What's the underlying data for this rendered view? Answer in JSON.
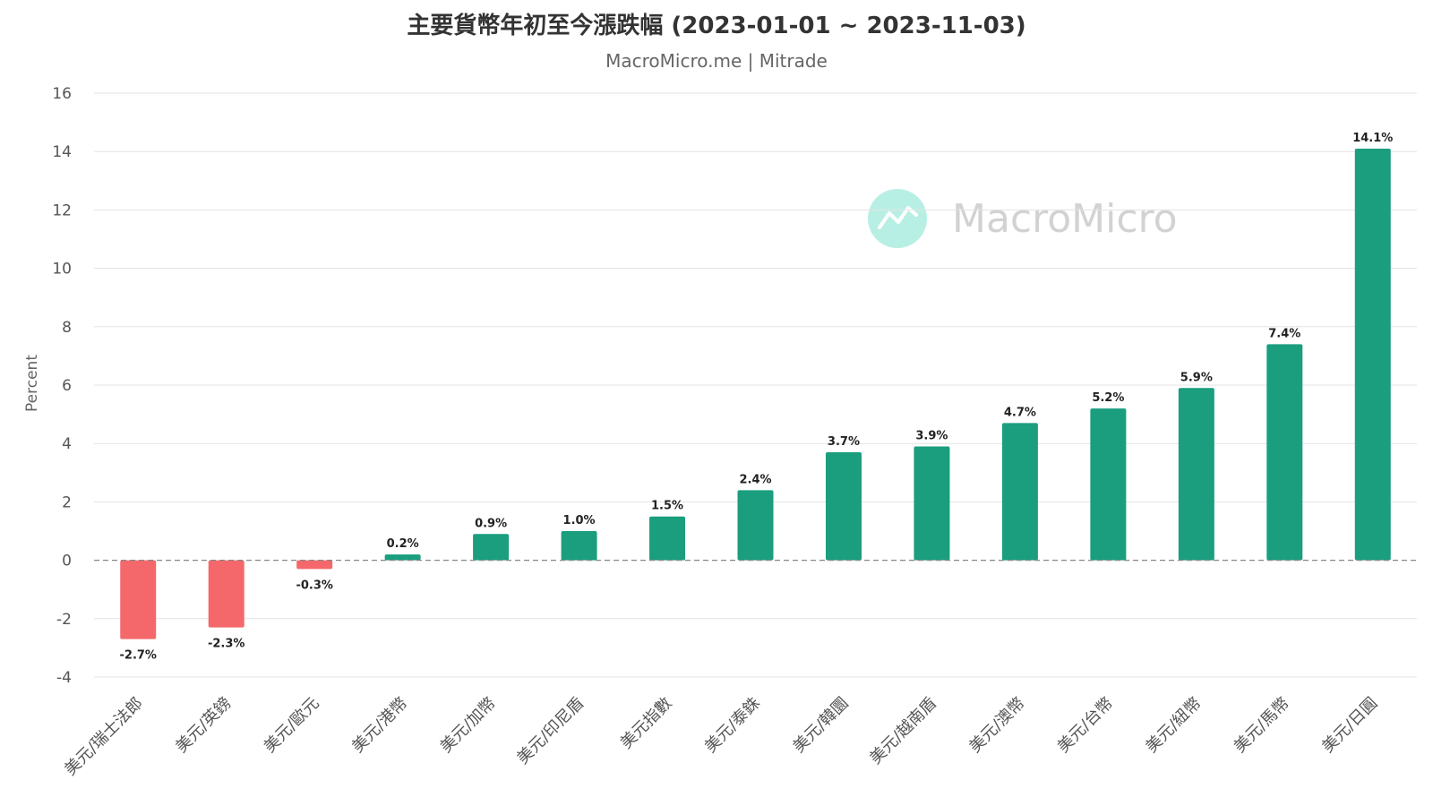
{
  "chart_data": {
    "type": "bar",
    "title": "主要貨幣年初至今漲跌幅 (2023-01-01 ~ 2023-11-03)",
    "subtitle": "MacroMicro.me | Mitrade",
    "ylabel": "Percent",
    "xlabel": "",
    "ylim": [
      -4,
      16
    ],
    "yticks": [
      16,
      14,
      12,
      10,
      8,
      6,
      4,
      2,
      0,
      -2,
      -4
    ],
    "grid": true,
    "legend": "none",
    "categories": [
      "美元/瑞士法郎",
      "美元/英鎊",
      "美元/歐元",
      "美元/港幣",
      "美元/加幣",
      "美元/印尼盾",
      "美元指數",
      "美元/泰銖",
      "美元/韓圜",
      "美元/越南盾",
      "美元/澳幣",
      "美元/台幣",
      "美元/紐幣",
      "美元/馬幣",
      "美元/日圓"
    ],
    "values": [
      -2.7,
      -2.3,
      -0.3,
      0.2,
      0.9,
      1.0,
      1.5,
      2.4,
      3.7,
      3.9,
      4.7,
      5.2,
      5.9,
      7.4,
      14.1
    ],
    "data_labels": [
      "-2.7%",
      "-2.3%",
      "-0.3%",
      "0.2%",
      "0.9%",
      "1.0%",
      "1.5%",
      "2.4%",
      "3.7%",
      "3.9%",
      "4.7%",
      "5.2%",
      "5.9%",
      "7.4%",
      "14.1%"
    ],
    "colors": {
      "positive": "#1a9e7e",
      "negative": "#f4686b",
      "zero_line": "#888888",
      "grid": "#e3e3e3"
    }
  },
  "watermark": {
    "text": "MacroMicro",
    "icon": "chart-line-logo-icon",
    "color": "#b8efe4"
  }
}
